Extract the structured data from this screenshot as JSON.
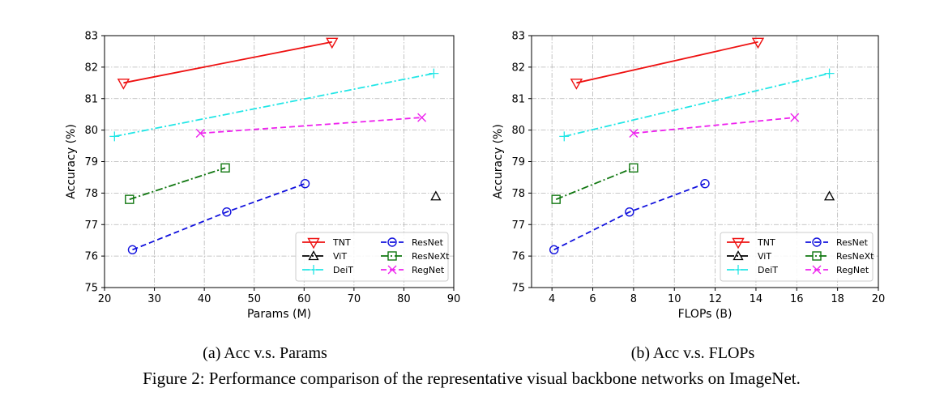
{
  "chart_data": [
    {
      "type": "line",
      "title": "",
      "xlabel": "Params (M)",
      "ylabel": "Accuracy (%)",
      "xlim": [
        20,
        90
      ],
      "ylim": [
        75,
        83
      ],
      "xticks": [
        20,
        30,
        40,
        50,
        60,
        70,
        80,
        90
      ],
      "yticks": [
        75,
        76,
        77,
        78,
        79,
        80,
        81,
        82,
        83
      ],
      "grid": true,
      "legend_position": "lower-right",
      "series": [
        {
          "name": "TNT",
          "color": "#ee1111",
          "style": "solid",
          "marker": "triangle-down",
          "x": [
            23.8,
            65.6
          ],
          "y": [
            81.5,
            82.8
          ]
        },
        {
          "name": "ViT",
          "color": "#000000",
          "style": "dashdot",
          "marker": "triangle-up",
          "x": [
            86.4
          ],
          "y": [
            77.9
          ]
        },
        {
          "name": "DeiT",
          "color": "#22e6e6",
          "style": "dashdot",
          "marker": "plus",
          "x": [
            22.0,
            86.0
          ],
          "y": [
            79.8,
            81.8
          ]
        },
        {
          "name": "ResNet",
          "color": "#1111dd",
          "style": "dashed",
          "marker": "circle",
          "x": [
            25.6,
            44.5,
            60.2
          ],
          "y": [
            76.2,
            77.4,
            78.3
          ]
        },
        {
          "name": "ResNeXt",
          "color": "#117711",
          "style": "dashdot",
          "marker": "square",
          "x": [
            25.0,
            44.2
          ],
          "y": [
            77.8,
            78.8
          ]
        },
        {
          "name": "RegNet",
          "color": "#ee22ee",
          "style": "dashed",
          "marker": "x",
          "x": [
            39.2,
            83.6
          ],
          "y": [
            79.9,
            80.4
          ]
        }
      ]
    },
    {
      "type": "line",
      "title": "",
      "xlabel": "FLOPs (B)",
      "ylabel": "Accuracy (%)",
      "xlim": [
        3,
        20
      ],
      "ylim": [
        75,
        83
      ],
      "xticks": [
        4,
        6,
        8,
        10,
        12,
        14,
        16,
        18,
        20
      ],
      "yticks": [
        75,
        76,
        77,
        78,
        79,
        80,
        81,
        82,
        83
      ],
      "grid": true,
      "legend_position": "lower-right",
      "series": [
        {
          "name": "TNT",
          "color": "#ee1111",
          "style": "solid",
          "marker": "triangle-down",
          "x": [
            5.2,
            14.1
          ],
          "y": [
            81.5,
            82.8
          ]
        },
        {
          "name": "ViT",
          "color": "#000000",
          "style": "dashdot",
          "marker": "triangle-up",
          "x": [
            17.6
          ],
          "y": [
            77.9
          ]
        },
        {
          "name": "DeiT",
          "color": "#22e6e6",
          "style": "dashdot",
          "marker": "plus",
          "x": [
            4.6,
            17.6
          ],
          "y": [
            79.8,
            81.8
          ]
        },
        {
          "name": "ResNet",
          "color": "#1111dd",
          "style": "dashed",
          "marker": "circle",
          "x": [
            4.1,
            7.8,
            11.5
          ],
          "y": [
            76.2,
            77.4,
            78.3
          ]
        },
        {
          "name": "ResNeXt",
          "color": "#117711",
          "style": "dashdot",
          "marker": "square",
          "x": [
            4.2,
            8.0
          ],
          "y": [
            77.8,
            78.8
          ]
        },
        {
          "name": "RegNet",
          "color": "#ee22ee",
          "style": "dashed",
          "marker": "x",
          "x": [
            8.0,
            15.9
          ],
          "y": [
            79.9,
            80.4
          ]
        }
      ]
    }
  ],
  "captions": {
    "sub_a": "(a) Acc v.s. Params",
    "sub_b": "(b) Acc v.s. FLOPs",
    "main": "Figure 2: Performance comparison of the representative visual backbone networks on ImageNet."
  }
}
